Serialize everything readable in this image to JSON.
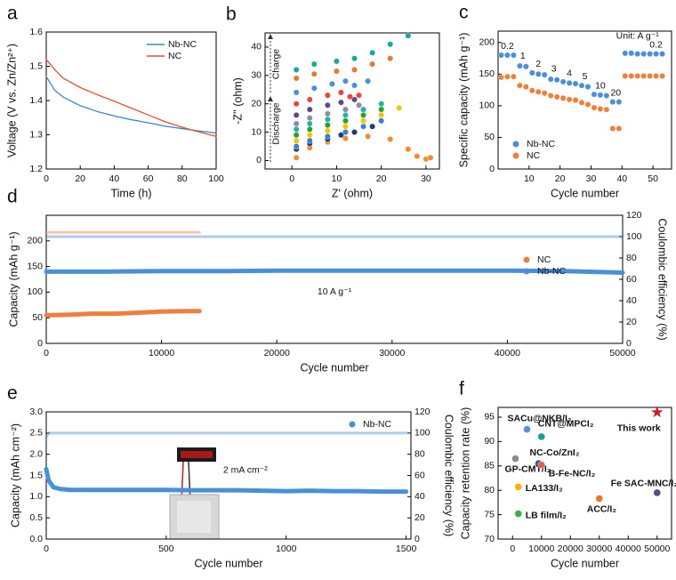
{
  "chart_data": [
    {
      "type": "line",
      "panel": "a",
      "x_label": "Time (h)",
      "y_label": "Voltage (V vs. Zn/Zn²⁺)",
      "xlim": [
        0,
        100
      ],
      "ylim": [
        1.2,
        1.6
      ],
      "xticks": [
        0,
        20,
        40,
        60,
        80,
        100
      ],
      "yticks": [
        1.2,
        1.3,
        1.4,
        1.5,
        1.6
      ],
      "legend": "upper right",
      "x": [
        0,
        5,
        10,
        20,
        30,
        40,
        50,
        60,
        70,
        80,
        90,
        100
      ],
      "series": [
        {
          "name": "Nb-NC",
          "color": "#3a86c8",
          "values": [
            1.47,
            1.43,
            1.41,
            1.385,
            1.368,
            1.355,
            1.344,
            1.335,
            1.325,
            1.318,
            1.311,
            1.305
          ]
        },
        {
          "name": "NC",
          "color": "#e8502a",
          "values": [
            1.52,
            1.49,
            1.465,
            1.438,
            1.417,
            1.398,
            1.378,
            1.358,
            1.338,
            1.322,
            1.308,
            1.295
          ]
        }
      ]
    },
    {
      "type": "scatter",
      "panel": "b",
      "x_label": "Z' (ohm)",
      "y_label": "-Z'' (ohm)",
      "xlim": [
        -6,
        33
      ],
      "ylim": [
        -3,
        45
      ],
      "xticks": [
        0,
        10,
        20,
        30
      ],
      "yticks": [
        0,
        10,
        20,
        30,
        40
      ],
      "annotations": [
        "Charge",
        "Discharge"
      ],
      "series": [
        {
          "color": "#f28b2c",
          "x": [
            1,
            4,
            8,
            12,
            17,
            22,
            26,
            28,
            30,
            31
          ],
          "values": [
            1,
            4.5,
            6.5,
            7.8,
            8.5,
            7.5,
            4,
            1.5,
            0.5,
            1
          ]
        },
        {
          "color": "#1f3d7a",
          "x": [
            1,
            4,
            8,
            11,
            14,
            18
          ],
          "values": [
            4,
            6,
            7.5,
            9,
            10,
            12
          ]
        },
        {
          "color": "#3a7fd5",
          "x": [
            1,
            4,
            8,
            12,
            16,
            20
          ],
          "values": [
            5,
            7,
            8.5,
            10,
            12,
            14
          ]
        },
        {
          "color": "#f2c500",
          "x": [
            1,
            4,
            8,
            12,
            16,
            20,
            24
          ],
          "values": [
            7,
            9,
            10.5,
            12,
            14,
            16,
            18.5
          ]
        },
        {
          "color": "#2ca02c",
          "x": [
            1,
            4,
            8,
            12,
            16,
            20
          ],
          "values": [
            9,
            11,
            12.5,
            14,
            16,
            18
          ]
        },
        {
          "color": "#20b2aa",
          "x": [
            1,
            4,
            8,
            12,
            16,
            20
          ],
          "values": [
            11,
            13,
            14.5,
            16,
            18,
            20
          ]
        },
        {
          "color": "#8c8c9c",
          "x": [
            1,
            4,
            8,
            12,
            15
          ],
          "values": [
            13,
            15,
            16.5,
            18,
            19.5
          ]
        },
        {
          "color": "#5b4a8b",
          "x": [
            1,
            4,
            8,
            11,
            14
          ],
          "values": [
            16,
            18,
            19.5,
            20.5,
            21.5
          ]
        },
        {
          "color": "#e8453c",
          "x": [
            1,
            4,
            8,
            11,
            13,
            15
          ],
          "values": [
            20,
            21.5,
            23,
            24,
            22.5,
            23
          ]
        },
        {
          "color": "#4a90d9",
          "x": [
            1,
            5,
            9,
            12,
            14,
            17
          ],
          "values": [
            24,
            25.5,
            27,
            28,
            26.5,
            28
          ]
        },
        {
          "color": "#e07b39",
          "x": [
            1,
            5,
            10,
            14,
            18,
            22
          ],
          "values": [
            29,
            30.5,
            31.5,
            32,
            34,
            36
          ]
        },
        {
          "color": "#1aa89a",
          "x": [
            1,
            5,
            10,
            14,
            18,
            22,
            26
          ],
          "values": [
            32,
            34,
            35,
            36,
            38,
            41,
            44
          ]
        }
      ]
    },
    {
      "type": "scatter",
      "panel": "c",
      "x_label": "Cycle number",
      "y_label": "Specific capacity (mAh g⁻¹)",
      "xlim": [
        0,
        56
      ],
      "ylim": [
        0,
        218
      ],
      "xticks": [
        10,
        20,
        30,
        40,
        50
      ],
      "yticks": [
        0,
        50,
        100,
        150,
        200
      ],
      "legend": "lower left",
      "annotations": [
        "0.2",
        "1",
        "2",
        "3",
        "4",
        "5",
        "10",
        "20",
        "0.2",
        "Unit: A g⁻¹"
      ],
      "x": [
        1,
        3,
        5,
        7,
        9,
        11,
        13,
        15,
        17,
        19,
        21,
        23,
        25,
        27,
        29,
        31,
        33,
        35,
        37,
        39,
        41,
        43,
        45,
        47,
        49,
        51,
        53
      ],
      "series": [
        {
          "name": "Nb-NC",
          "color": "#4a90d9",
          "values": [
            180,
            180,
            180,
            163,
            162,
            152,
            150,
            149,
            142,
            141,
            138,
            136,
            135,
            132,
            130,
            118,
            117,
            116,
            106,
            106,
            183,
            183,
            182,
            182,
            182,
            182,
            182
          ]
        },
        {
          "name": "NC",
          "color": "#f07f3c",
          "values": [
            145,
            146,
            146,
            132,
            130,
            124,
            122,
            120,
            116,
            114,
            112,
            110,
            109,
            105,
            102,
            97,
            95,
            94,
            64,
            64,
            147,
            147,
            147,
            147,
            147,
            147,
            147
          ]
        }
      ]
    },
    {
      "type": "line",
      "panel": "d",
      "x_label": "Cycle number",
      "y_label": "Capacity (mAh g⁻¹)",
      "y2_label": "Coulombic efficiency (%)",
      "xlim": [
        0,
        50000
      ],
      "ylim": [
        0,
        250
      ],
      "y2lim": [
        0,
        120
      ],
      "xticks": [
        0,
        10000,
        20000,
        30000,
        40000,
        50000
      ],
      "yticks": [
        0,
        50,
        100,
        150,
        200
      ],
      "y2ticks": [
        0,
        20,
        40,
        60,
        80,
        100,
        120
      ],
      "legend": "center right",
      "annotations": [
        "10 A g⁻¹"
      ],
      "series": [
        {
          "name": "NC",
          "color": "#f07f3c",
          "x": [
            0,
            2000,
            4000,
            6000,
            8000,
            10000,
            12000,
            13300
          ],
          "values": [
            55,
            56,
            58,
            58,
            60,
            62,
            63,
            63
          ],
          "ce": [
            104,
            104,
            104,
            104,
            104,
            104,
            104,
            104
          ]
        },
        {
          "name": "Nb-NC",
          "color": "#4a90d9",
          "x": [
            0,
            5000,
            10000,
            15000,
            20000,
            25000,
            30000,
            35000,
            40000,
            45000,
            50000
          ],
          "values": [
            140,
            140,
            141,
            141,
            142,
            142,
            142,
            142,
            142,
            141,
            138
          ],
          "ce": [
            100,
            100,
            100,
            100,
            100,
            100,
            100,
            100,
            100,
            100,
            100
          ]
        }
      ]
    },
    {
      "type": "line",
      "panel": "e",
      "x_label": "Cycle number",
      "y_label": "Capacity (mAh cm⁻²)",
      "y2_label": "Coulombic efficiency (%)",
      "xlim": [
        0,
        1520
      ],
      "ylim": [
        0,
        3
      ],
      "y2lim": [
        0,
        120
      ],
      "xticks": [
        0,
        500,
        1000,
        1500
      ],
      "yticks": [
        {
          "value": 0,
          "label": "0.0"
        },
        0.5,
        {
          "value": 1,
          "label": "1.0"
        },
        1.5,
        {
          "value": 2,
          "label": "2.0"
        },
        2.5,
        {
          "value": 3,
          "label": "3.0"
        }
      ],
      "y2ticks": [
        0,
        20,
        40,
        60,
        80,
        100,
        120
      ],
      "legend": "upper right",
      "annotations": [
        "2 mA cm⁻²"
      ],
      "series": [
        {
          "name": "Nb-NC",
          "color": "#4a90d9",
          "x": [
            0,
            10,
            30,
            60,
            100,
            200,
            300,
            400,
            500,
            600,
            700,
            800,
            900,
            1000,
            1100,
            1200,
            1300,
            1400,
            1500
          ],
          "values": [
            1.65,
            1.38,
            1.22,
            1.18,
            1.16,
            1.16,
            1.16,
            1.16,
            1.16,
            1.15,
            1.15,
            1.15,
            1.14,
            1.13,
            1.14,
            1.13,
            1.13,
            1.12,
            1.12
          ],
          "ce": [
            96,
            100,
            100,
            100,
            100,
            100,
            100,
            100,
            100,
            100,
            100,
            100,
            100,
            100,
            100,
            100,
            100,
            100,
            100
          ]
        }
      ]
    },
    {
      "type": "scatter",
      "panel": "f",
      "x_label": "Cycle number",
      "y_label": "Capacity retention rate (%)",
      "xlim": [
        -5000,
        55000
      ],
      "ylim": [
        70,
        97
      ],
      "xticks": [
        0,
        10000,
        20000,
        30000,
        40000,
        50000
      ],
      "yticks": [
        70,
        75,
        80,
        85,
        90,
        95
      ],
      "point_labels": true,
      "series": [
        {
          "name": "SACu@NKB/I₂",
          "color": "#5b8fd6",
          "x": [
            5000
          ],
          "values": [
            92.5
          ]
        },
        {
          "name": "CNT@MPCI₂",
          "color": "#1a9e8f",
          "x": [
            10000
          ],
          "values": [
            91
          ]
        },
        {
          "name": "NC-Co/ZnI₂",
          "color": "#2a5aa8",
          "x": [
            9000
          ],
          "values": [
            85.5
          ]
        },
        {
          "name": "GP-CMT/I₂",
          "color": "#8a8a8a",
          "x": [
            1000
          ],
          "values": [
            86.5
          ]
        },
        {
          "name": "B-Fe-NC/I₂",
          "color": "#e8604a",
          "x": [
            10000
          ],
          "values": [
            85.2
          ]
        },
        {
          "name": "LA133/I₂",
          "color": "#f0b400",
          "x": [
            2000
          ],
          "values": [
            80.7
          ]
        },
        {
          "name": "LB film/I₂",
          "color": "#3cb043",
          "x": [
            2000
          ],
          "values": [
            75.2
          ]
        },
        {
          "name": "ACC/I₂",
          "color": "#e8782a",
          "x": [
            30000
          ],
          "values": [
            78.3
          ]
        },
        {
          "name": "Fe SAC-MNC/I₂",
          "color": "#5a4a8a",
          "x": [
            50000
          ],
          "values": [
            79.5
          ]
        },
        {
          "name": "This work",
          "color": "#c8202a",
          "marker": "star",
          "x": [
            50000
          ],
          "values": [
            96
          ]
        }
      ]
    }
  ]
}
